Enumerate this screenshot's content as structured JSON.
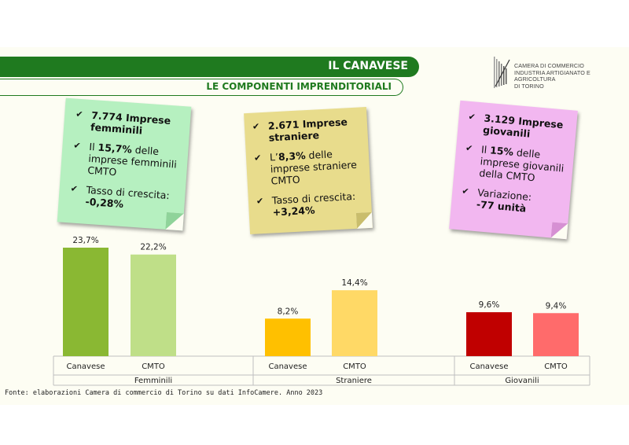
{
  "header": {
    "title": "IL CANAVESE",
    "subtitle": "LE COMPONENTI IMPRENDITORIALI"
  },
  "logo": {
    "line1": "CAMERA DI COMMERCIO",
    "line2": "INDUSTRIA ARTIGIANATO E AGRICOLTURA",
    "line3": "DI TORINO"
  },
  "notes": {
    "femminili": {
      "count": "7.774 Imprese femminili",
      "share_pre": "Il ",
      "share_val": "15,7%",
      "share_post": " delle imprese femminili CMTO",
      "growth_label": "Tasso di crescita:",
      "growth_val": "-0,28%"
    },
    "straniere": {
      "count": "2.671 Imprese straniere",
      "share_pre": "L’",
      "share_val": "8,3%",
      "share_post": " delle imprese straniere CMTO",
      "growth_label": "Tasso di crescita:",
      "growth_val": "+3,24%"
    },
    "giovanili": {
      "count": "3.129 Imprese giovanili",
      "share_pre": "Il ",
      "share_val": "15%",
      "share_post": " delle imprese giovanili della CMTO",
      "growth_label": "Variazione:",
      "growth_val": "-77 unità"
    }
  },
  "colors": {
    "header_green": "#1f7a1f",
    "femminili_canavese": "#8ab833",
    "femminili_cmto": "#bfdf88",
    "straniere_canavese": "#ffc000",
    "straniere_cmto": "#ffd966",
    "giovanili_canavese": "#c00000",
    "giovanili_cmto": "#ff6b6b",
    "note_green": "#b6f0c0",
    "note_yellow": "#e8dc8c",
    "note_pink": "#f2b7f0"
  },
  "chart_data": {
    "type": "bar",
    "groups": [
      {
        "name": "Femminili",
        "categories": [
          "Canavese",
          "CMTO"
        ],
        "values": [
          23.7,
          22.2
        ],
        "labels": [
          "23,7%",
          "22,2%"
        ]
      },
      {
        "name": "Straniere",
        "categories": [
          "Canavese",
          "CMTO"
        ],
        "values": [
          8.2,
          14.4
        ],
        "labels": [
          "8,2%",
          "14,4%"
        ]
      },
      {
        "name": "Giovanili",
        "categories": [
          "Canavese",
          "CMTO"
        ],
        "values": [
          9.6,
          9.4
        ],
        "labels": [
          "9,6%",
          "9,4%"
        ]
      }
    ],
    "ylim": [
      0,
      23.7
    ],
    "grid": false
  },
  "footer": {
    "source": "Fonte: elaborazioni Camera di commercio di Torino su dati InfoCamere. Anno 2023"
  }
}
